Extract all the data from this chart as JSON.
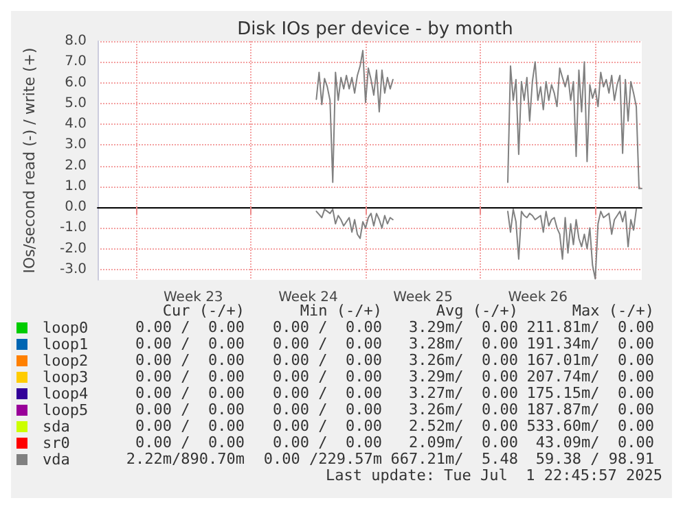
{
  "chart_data": {
    "type": "line",
    "title": "Disk IOs per device - by month",
    "ylabel": "IOs/second read (-) / write (+)",
    "categories": [
      null,
      null,
      null,
      null,
      null,
      null,
      null,
      null,
      null,
      null,
      null,
      null,
      null,
      null,
      null,
      null,
      null,
      null,
      null,
      null,
      null,
      null,
      null,
      null,
      null,
      null,
      null,
      null,
      null,
      null,
      null,
      null,
      null,
      null,
      null,
      "Week 23",
      null,
      null,
      null,
      null,
      null,
      null,
      null,
      null,
      null,
      null,
      null,
      null,
      null,
      null,
      null,
      null,
      null,
      null,
      null,
      null,
      null,
      null,
      null,
      null,
      null,
      null,
      null,
      null,
      null,
      null,
      null,
      null,
      null,
      null,
      null,
      null,
      null,
      null,
      null,
      null,
      null,
      "Week 24",
      null,
      null,
      null,
      null,
      null,
      null,
      null,
      null,
      null,
      null,
      null,
      null,
      null,
      null,
      null,
      null,
      null,
      null,
      null,
      null,
      null,
      null,
      null,
      null,
      null,
      null,
      null,
      null,
      null,
      null,
      null,
      null,
      null,
      null,
      null,
      null,
      null,
      null,
      null,
      null,
      null,
      "Week 25",
      null,
      null,
      null,
      null,
      null,
      null,
      null,
      null,
      null,
      null,
      null,
      null,
      null,
      null,
      null,
      null,
      null,
      null,
      null,
      null,
      null,
      null,
      null,
      null,
      null,
      null,
      null,
      null,
      null,
      null,
      null,
      null,
      null,
      null,
      null,
      null,
      null,
      null,
      null,
      null,
      null,
      "Week 26",
      null,
      null,
      null,
      null,
      null,
      null,
      null,
      null,
      null,
      null,
      null,
      null,
      null,
      null,
      null,
      null,
      null,
      null,
      null,
      null,
      null,
      null,
      null,
      null,
      null,
      null,
      null,
      null,
      null,
      null,
      null,
      null,
      null,
      null,
      null,
      null,
      null,
      null
    ],
    "ylim": [
      -3.5,
      8.0
    ],
    "yticks": [
      {
        "value": -3,
        "label": "-3.0"
      },
      {
        "value": -2,
        "label": "-2.0"
      },
      {
        "value": -1,
        "label": "-1.0"
      },
      {
        "value": 0,
        "label": "0.0"
      },
      {
        "value": 1,
        "label": "1.0"
      },
      {
        "value": 2,
        "label": "2.0"
      },
      {
        "value": 3,
        "label": "3.0"
      },
      {
        "value": 4,
        "label": "4.0"
      },
      {
        "value": 5,
        "label": "5.0"
      },
      {
        "value": 6,
        "label": "6.0"
      },
      {
        "value": 7,
        "label": "7.0"
      },
      {
        "value": 8,
        "label": "8.0"
      }
    ],
    "grid": true,
    "legend": "bottom left",
    "marker": "none",
    "line_style": "solid",
    "series": [
      {
        "name": "loop0",
        "color": "#00cc00",
        "values": [
          null,
          null,
          null,
          null,
          null,
          null,
          null,
          null,
          null,
          null,
          null,
          null,
          null,
          null,
          null,
          null,
          null,
          null,
          null,
          null,
          null,
          null,
          null,
          null,
          null,
          null,
          null,
          null,
          null,
          null,
          null,
          null,
          null,
          null,
          null,
          null,
          null,
          null,
          null,
          null,
          null,
          null,
          null,
          null,
          null,
          null,
          null,
          null,
          null,
          null,
          null,
          null,
          null,
          null,
          null,
          null,
          null,
          null,
          null,
          null,
          null,
          null,
          null,
          null,
          null,
          null,
          null,
          null,
          null,
          null,
          null,
          null,
          null,
          null,
          null,
          null,
          null,
          null,
          null,
          null,
          null,
          null,
          null,
          null,
          null,
          null,
          null,
          null,
          null,
          null,
          null,
          null,
          null,
          null,
          null,
          null,
          null,
          null,
          null,
          null,
          null,
          null,
          null,
          null,
          null,
          null,
          null,
          null,
          null,
          null,
          null,
          null,
          null,
          null,
          null,
          null,
          null,
          null,
          null,
          null,
          null,
          null,
          null,
          null,
          null,
          null,
          null,
          null,
          null,
          null,
          null,
          null,
          null,
          null,
          null,
          null,
          null,
          null,
          null,
          null,
          null,
          null,
          null,
          null,
          null,
          null,
          null,
          null,
          null,
          null,
          null,
          null,
          null,
          null,
          null,
          null,
          null,
          null,
          null,
          null,
          null,
          null,
          null,
          null,
          null,
          null,
          null,
          null,
          null,
          null,
          null,
          null,
          null,
          null,
          null,
          null,
          null,
          null,
          null,
          null,
          null,
          null,
          null,
          null,
          null,
          null,
          null,
          null,
          null,
          null,
          null,
          null,
          null,
          null,
          null,
          null,
          null,
          null,
          null,
          null
        ]
      },
      {
        "name": "loop1",
        "color": "#0066b3",
        "values": [
          null,
          null,
          null,
          null,
          null,
          null,
          null,
          null,
          null,
          null,
          null,
          null,
          null,
          null,
          null,
          null,
          null,
          null,
          null,
          null,
          null,
          null,
          null,
          null,
          null,
          null,
          null,
          null,
          null,
          null,
          null,
          null,
          null,
          null,
          null,
          null,
          null,
          null,
          null,
          null,
          null,
          null,
          null,
          null,
          null,
          null,
          null,
          null,
          null,
          null,
          null,
          null,
          null,
          null,
          null,
          null,
          null,
          null,
          null,
          null,
          null,
          null,
          null,
          null,
          null,
          null,
          null,
          null,
          null,
          null,
          null,
          null,
          null,
          null,
          null,
          null,
          null,
          null,
          null,
          null,
          null,
          null,
          null,
          null,
          null,
          null,
          null,
          null,
          null,
          null,
          null,
          null,
          null,
          null,
          null,
          null,
          null,
          null,
          null,
          null,
          null,
          null,
          null,
          null,
          null,
          null,
          null,
          null,
          null,
          null,
          null,
          null,
          null,
          null,
          null,
          null,
          null,
          null,
          null,
          null,
          null,
          null,
          null,
          null,
          null,
          null,
          null,
          null,
          null,
          null,
          null,
          null,
          null,
          null,
          null,
          null,
          null,
          null,
          null,
          null,
          null,
          null,
          null,
          null,
          null,
          null,
          null,
          null,
          null,
          null,
          null,
          null,
          null,
          null,
          null,
          null,
          null,
          null,
          null,
          null,
          null,
          null,
          null,
          null,
          null,
          null,
          null,
          null,
          null,
          null,
          null,
          null,
          null,
          null,
          null,
          null,
          null,
          null,
          null,
          null,
          null,
          null,
          null,
          null,
          null,
          null,
          null,
          null,
          null,
          null,
          null,
          null,
          null,
          null,
          null,
          null,
          null,
          null,
          null,
          null
        ]
      },
      {
        "name": "loop2",
        "color": "#ff8000",
        "values": [
          null,
          null,
          null,
          null,
          null,
          null,
          null,
          null,
          null,
          null,
          null,
          null,
          null,
          null,
          null,
          null,
          null,
          null,
          null,
          null,
          null,
          null,
          null,
          null,
          null,
          null,
          null,
          null,
          null,
          null,
          null,
          null,
          null,
          null,
          null,
          null,
          null,
          null,
          null,
          null,
          null,
          null,
          null,
          null,
          null,
          null,
          null,
          null,
          null,
          null,
          null,
          null,
          null,
          null,
          null,
          null,
          null,
          null,
          null,
          null,
          null,
          null,
          null,
          null,
          null,
          null,
          null,
          null,
          null,
          null,
          null,
          null,
          null,
          null,
          null,
          null,
          null,
          null,
          null,
          null,
          null,
          null,
          null,
          null,
          null,
          null,
          null,
          null,
          null,
          null,
          null,
          null,
          null,
          null,
          null,
          null,
          null,
          null,
          null,
          null,
          null,
          null,
          null,
          null,
          null,
          null,
          null,
          null,
          null,
          null,
          null,
          null,
          null,
          null,
          null,
          null,
          null,
          null,
          null,
          null,
          null,
          null,
          null,
          null,
          null,
          null,
          null,
          null,
          null,
          null,
          null,
          null,
          null,
          null,
          null,
          null,
          null,
          null,
          null,
          null,
          null,
          null,
          null,
          null,
          null,
          null,
          null,
          null,
          null,
          null,
          null,
          null,
          null,
          null,
          null,
          null,
          null,
          null,
          null,
          null,
          null,
          null,
          null,
          null,
          null,
          null,
          null,
          null,
          null,
          null,
          null,
          null,
          null,
          null,
          null,
          null,
          null,
          null,
          null,
          null,
          null,
          null,
          null,
          null,
          null,
          null,
          null,
          null,
          null,
          null,
          null,
          null,
          null,
          null,
          null,
          null,
          null,
          null,
          null,
          null
        ]
      },
      {
        "name": "loop3",
        "color": "#ffcc00",
        "values": [
          null,
          null,
          null,
          null,
          null,
          null,
          null,
          null,
          null,
          null,
          null,
          null,
          null,
          null,
          null,
          null,
          null,
          null,
          null,
          null,
          null,
          null,
          null,
          null,
          null,
          null,
          null,
          null,
          null,
          null,
          null,
          null,
          null,
          null,
          null,
          null,
          null,
          null,
          null,
          null,
          null,
          null,
          null,
          null,
          null,
          null,
          null,
          null,
          null,
          null,
          null,
          null,
          null,
          null,
          null,
          null,
          null,
          null,
          null,
          null,
          null,
          null,
          null,
          null,
          null,
          null,
          null,
          null,
          null,
          null,
          null,
          null,
          null,
          null,
          null,
          null,
          null,
          null,
          null,
          null,
          null,
          null,
          null,
          null,
          null,
          null,
          null,
          null,
          null,
          null,
          null,
          null,
          null,
          null,
          null,
          null,
          null,
          null,
          null,
          null,
          null,
          null,
          null,
          null,
          null,
          null,
          null,
          null,
          null,
          null,
          null,
          null,
          null,
          null,
          null,
          null,
          null,
          null,
          null,
          null,
          null,
          null,
          null,
          null,
          null,
          null,
          null,
          null,
          null,
          null,
          null,
          null,
          null,
          null,
          null,
          null,
          null,
          null,
          null,
          null,
          null,
          null,
          null,
          null,
          null,
          null,
          null,
          null,
          null,
          null,
          null,
          null,
          null,
          null,
          null,
          null,
          null,
          null,
          null,
          null,
          null,
          null,
          null,
          null,
          null,
          null,
          null,
          null,
          null,
          null,
          null,
          null,
          null,
          null,
          null,
          null,
          null,
          null,
          null,
          null,
          null,
          null,
          null,
          null,
          null,
          null,
          null,
          null,
          null,
          null,
          null,
          null,
          null,
          null,
          null,
          null,
          null,
          null,
          null,
          null
        ]
      },
      {
        "name": "loop4",
        "color": "#330099",
        "values": [
          null,
          null,
          null,
          null,
          null,
          null,
          null,
          null,
          null,
          null,
          null,
          null,
          null,
          null,
          null,
          null,
          null,
          null,
          null,
          null,
          null,
          null,
          null,
          null,
          null,
          null,
          null,
          null,
          null,
          null,
          null,
          null,
          null,
          null,
          null,
          null,
          null,
          null,
          null,
          null,
          null,
          null,
          null,
          null,
          null,
          null,
          null,
          null,
          null,
          null,
          null,
          null,
          null,
          null,
          null,
          null,
          null,
          null,
          null,
          null,
          null,
          null,
          null,
          null,
          null,
          null,
          null,
          null,
          null,
          null,
          null,
          null,
          null,
          null,
          null,
          null,
          null,
          null,
          null,
          null,
          null,
          null,
          null,
          null,
          null,
          null,
          null,
          null,
          null,
          null,
          null,
          null,
          null,
          null,
          null,
          null,
          null,
          null,
          null,
          null,
          null,
          null,
          null,
          null,
          null,
          null,
          null,
          null,
          null,
          null,
          null,
          null,
          null,
          null,
          null,
          null,
          null,
          null,
          null,
          null,
          null,
          null,
          null,
          null,
          null,
          null,
          null,
          null,
          null,
          null,
          null,
          null,
          null,
          null,
          null,
          null,
          null,
          null,
          null,
          null,
          null,
          null,
          null,
          null,
          null,
          null,
          null,
          null,
          null,
          null,
          null,
          null,
          null,
          null,
          null,
          null,
          null,
          null,
          null,
          null,
          null,
          null,
          null,
          null,
          null,
          null,
          null,
          null,
          null,
          null,
          null,
          null,
          null,
          null,
          null,
          null,
          null,
          null,
          null,
          null,
          null,
          null,
          null,
          null,
          null,
          null,
          null,
          null,
          null,
          null,
          null,
          null,
          null,
          null,
          null,
          null,
          null,
          null,
          null,
          null
        ]
      },
      {
        "name": "loop5",
        "color": "#990099",
        "values": [
          null,
          null,
          null,
          null,
          null,
          null,
          null,
          null,
          null,
          null,
          null,
          null,
          null,
          null,
          null,
          null,
          null,
          null,
          null,
          null,
          null,
          null,
          null,
          null,
          null,
          null,
          null,
          null,
          null,
          null,
          null,
          null,
          null,
          null,
          null,
          null,
          null,
          null,
          null,
          null,
          null,
          null,
          null,
          null,
          null,
          null,
          null,
          null,
          null,
          null,
          null,
          null,
          null,
          null,
          null,
          null,
          null,
          null,
          null,
          null,
          null,
          null,
          null,
          null,
          null,
          null,
          null,
          null,
          null,
          null,
          null,
          null,
          null,
          null,
          null,
          null,
          null,
          null,
          null,
          null,
          null,
          null,
          null,
          null,
          null,
          null,
          null,
          null,
          null,
          null,
          null,
          null,
          null,
          null,
          null,
          null,
          null,
          null,
          null,
          null,
          null,
          null,
          null,
          null,
          null,
          null,
          null,
          null,
          null,
          null,
          null,
          null,
          null,
          null,
          null,
          null,
          null,
          null,
          null,
          null,
          null,
          null,
          null,
          null,
          null,
          null,
          null,
          null,
          null,
          null,
          null,
          null,
          null,
          null,
          null,
          null,
          null,
          null,
          null,
          null,
          null,
          null,
          null,
          null,
          null,
          null,
          null,
          null,
          null,
          null,
          null,
          null,
          null,
          null,
          null,
          null,
          null,
          null,
          null,
          null,
          null,
          null,
          null,
          null,
          null,
          null,
          null,
          null,
          null,
          null,
          null,
          null,
          null,
          null,
          null,
          null,
          null,
          null,
          null,
          null,
          null,
          null,
          null,
          null,
          null,
          null,
          null,
          null,
          null,
          null,
          null,
          null,
          null,
          null,
          null,
          null,
          null,
          null,
          null,
          null
        ]
      },
      {
        "name": "sda",
        "color": "#ccff00",
        "values": [
          null,
          null,
          null,
          null,
          null,
          null,
          null,
          null,
          null,
          null,
          null,
          null,
          null,
          null,
          null,
          null,
          null,
          null,
          null,
          null,
          null,
          null,
          null,
          null,
          null,
          null,
          null,
          null,
          null,
          null,
          null,
          null,
          null,
          null,
          null,
          null,
          null,
          null,
          null,
          null,
          null,
          null,
          null,
          null,
          null,
          null,
          null,
          null,
          null,
          null,
          null,
          null,
          null,
          null,
          null,
          null,
          null,
          null,
          null,
          null,
          null,
          null,
          null,
          null,
          null,
          null,
          null,
          null,
          null,
          null,
          null,
          null,
          null,
          null,
          null,
          null,
          null,
          null,
          null,
          null,
          null,
          null,
          null,
          null,
          null,
          null,
          null,
          null,
          null,
          null,
          null,
          null,
          null,
          null,
          null,
          null,
          null,
          null,
          null,
          null,
          null,
          null,
          null,
          null,
          null,
          null,
          null,
          null,
          null,
          null,
          null,
          null,
          null,
          null,
          null,
          null,
          null,
          null,
          null,
          null,
          null,
          null,
          null,
          null,
          null,
          null,
          null,
          null,
          null,
          null,
          null,
          null,
          null,
          null,
          null,
          null,
          null,
          null,
          null,
          null,
          null,
          null,
          null,
          null,
          null,
          null,
          null,
          null,
          null,
          null,
          null,
          null,
          null,
          null,
          null,
          null,
          null,
          null,
          null,
          null,
          null,
          null,
          null,
          null,
          null,
          null,
          null,
          null,
          null,
          null,
          null,
          null,
          null,
          null,
          null,
          null,
          null,
          null,
          null,
          null,
          null,
          null,
          null,
          null,
          null,
          null,
          null,
          null,
          null,
          null,
          null,
          null,
          null,
          null,
          null,
          null,
          null,
          null,
          null,
          null
        ]
      },
      {
        "name": "sr0",
        "color": "#ff0000",
        "values": [
          null,
          null,
          null,
          null,
          null,
          null,
          null,
          null,
          null,
          null,
          null,
          null,
          null,
          null,
          null,
          null,
          null,
          null,
          null,
          null,
          null,
          null,
          null,
          null,
          null,
          null,
          null,
          null,
          null,
          null,
          null,
          null,
          null,
          null,
          null,
          null,
          null,
          null,
          null,
          null,
          null,
          null,
          null,
          null,
          null,
          null,
          null,
          null,
          null,
          null,
          null,
          null,
          null,
          null,
          null,
          null,
          null,
          null,
          null,
          null,
          null,
          null,
          null,
          null,
          null,
          null,
          null,
          null,
          null,
          null,
          null,
          null,
          null,
          null,
          null,
          null,
          null,
          null,
          null,
          null,
          null,
          null,
          null,
          null,
          null,
          null,
          null,
          null,
          null,
          null,
          null,
          null,
          null,
          null,
          null,
          null,
          null,
          null,
          null,
          null,
          null,
          null,
          null,
          null,
          null,
          null,
          null,
          null,
          null,
          null,
          null,
          null,
          null,
          null,
          null,
          null,
          null,
          null,
          null,
          null,
          null,
          null,
          null,
          null,
          null,
          null,
          null,
          null,
          null,
          null,
          null,
          null,
          null,
          null,
          null,
          null,
          null,
          null,
          null,
          null,
          null,
          null,
          null,
          null,
          null,
          null,
          null,
          null,
          null,
          null,
          null,
          null,
          null,
          null,
          null,
          null,
          null,
          null,
          null,
          null,
          null,
          null,
          null,
          null,
          null,
          null,
          null,
          null,
          null,
          null,
          null,
          null,
          null,
          null,
          null,
          null,
          null,
          null,
          null,
          null,
          null,
          null,
          null,
          null,
          null,
          null,
          null,
          null,
          null,
          null,
          null,
          null,
          null,
          null,
          null,
          null,
          null,
          null,
          null,
          null
        ]
      },
      {
        "name": "vda",
        "color": "#808080",
        "values": [
          null,
          null,
          null,
          null,
          null,
          null,
          null,
          null,
          null,
          null,
          null,
          null,
          null,
          null,
          null,
          null,
          null,
          null,
          null,
          null,
          null,
          null,
          null,
          null,
          null,
          null,
          null,
          null,
          null,
          null,
          null,
          null,
          null,
          null,
          null,
          null,
          null,
          null,
          null,
          null,
          null,
          null,
          null,
          null,
          null,
          null,
          null,
          null,
          null,
          null,
          null,
          null,
          null,
          null,
          null,
          null,
          null,
          null,
          null,
          null,
          null,
          null,
          null,
          null,
          null,
          null,
          null,
          null,
          null,
          null,
          null,
          null,
          null,
          null,
          null,
          null,
          null,
          null,
          null,
          null,
          5.2,
          6.5,
          4.95,
          6.2,
          5.8,
          5.15,
          1.2,
          6.5,
          5.15,
          6.25,
          5.7,
          6.35,
          5.7,
          6.25,
          5.5,
          6.35,
          6.8,
          7.55,
          5.05,
          6.7,
          6.15,
          5.4,
          6.6,
          4.6,
          6.6,
          5.5,
          6.25,
          5.7,
          6.15,
          null,
          null,
          null,
          null,
          null,
          null,
          null,
          null,
          null,
          null,
          null,
          null,
          null,
          null,
          null,
          null,
          null,
          null,
          null,
          null,
          null,
          null,
          null,
          null,
          null,
          null,
          null,
          null,
          null,
          null,
          null,
          null,
          null,
          null,
          null,
          null,
          null,
          null,
          null,
          null,
          null,
          1.2,
          6.8,
          5.15,
          6.15,
          2.55,
          6.05,
          5.15,
          6.25,
          4.15,
          6.05,
          7.0,
          5.15,
          5.8,
          4.7,
          6.05,
          5.15,
          5.9,
          5.5,
          4.85,
          6.7,
          6.25,
          5.8,
          6.35,
          5.15,
          6.05,
          2.45,
          6.6,
          4.6,
          7.0,
          2.2,
          5.9,
          5.25,
          5.7,
          4.85,
          6.5,
          5.8,
          6.15,
          5.5,
          6.35,
          5.15,
          5.9,
          6.35,
          2.6,
          6.15,
          4.15,
          6.05,
          5.5,
          4.85,
          0.9,
          0.9
        ]
      },
      {
        "color": "#808080",
        "values": [
          null,
          null,
          null,
          null,
          null,
          null,
          null,
          null,
          null,
          null,
          null,
          null,
          null,
          null,
          null,
          null,
          null,
          null,
          null,
          null,
          null,
          null,
          null,
          null,
          null,
          null,
          null,
          null,
          null,
          null,
          null,
          null,
          null,
          null,
          null,
          null,
          null,
          null,
          null,
          null,
          null,
          null,
          null,
          null,
          null,
          null,
          null,
          null,
          null,
          null,
          null,
          null,
          null,
          null,
          null,
          null,
          null,
          null,
          null,
          null,
          null,
          null,
          null,
          null,
          null,
          null,
          null,
          null,
          null,
          null,
          null,
          null,
          null,
          null,
          null,
          null,
          null,
          null,
          null,
          null,
          -0.2,
          -0.35,
          -0.5,
          -0.1,
          -0.2,
          -0.3,
          -0.1,
          -0.8,
          -0.4,
          -0.6,
          -0.9,
          -0.7,
          -0.5,
          -1.2,
          -0.6,
          -1.3,
          -1.5,
          -0.7,
          -1.0,
          -0.5,
          -0.3,
          -0.9,
          -0.3,
          -0.6,
          -1.0,
          -0.4,
          -0.8,
          -0.5,
          -0.6,
          null,
          null,
          null,
          null,
          null,
          null,
          null,
          null,
          null,
          null,
          null,
          null,
          null,
          null,
          null,
          null,
          null,
          null,
          null,
          null,
          null,
          null,
          null,
          null,
          null,
          null,
          null,
          null,
          null,
          null,
          null,
          null,
          null,
          null,
          null,
          null,
          null,
          null,
          null,
          null,
          null,
          -0.2,
          -1.2,
          -0.1,
          -0.7,
          -2.5,
          -0.2,
          -0.4,
          -0.5,
          -0.3,
          -0.4,
          -0.6,
          -0.5,
          -0.4,
          -1.2,
          -0.2,
          -0.9,
          -0.6,
          -0.5,
          -1.0,
          -1.3,
          -2.5,
          -0.5,
          -2.2,
          -0.8,
          -1.8,
          -0.6,
          -1.5,
          -1.9,
          -1.3,
          -2.0,
          -1.0,
          -2.8,
          -3.45,
          -0.8,
          -0.2,
          -0.5,
          -0.4,
          -0.3,
          -1.3,
          -0.6,
          -0.4,
          -0.2,
          -0.7,
          -0.2,
          -1.9,
          -0.6,
          -1.1,
          -0.1,
          null,
          null
        ]
      }
    ],
    "annotations": [
      "Cur (-/+)",
      "Min (-/+)",
      "Avg (-/+)",
      "Max (-/+)",
      "0.00 /  0.00",
      "0.00 /  0.00",
      "3.29m/  0.00",
      "211.81m/  0.00",
      "0.00 /  0.00",
      "0.00 /  0.00",
      "3.28m/  0.00",
      "191.34m/  0.00",
      "0.00 /  0.00",
      "0.00 /  0.00",
      "3.26m/  0.00",
      "167.01m/  0.00",
      "0.00 /  0.00",
      "0.00 /  0.00",
      "3.29m/  0.00",
      "207.74m/  0.00",
      "0.00 /  0.00",
      "0.00 /  0.00",
      "3.27m/  0.00",
      "175.15m/  0.00",
      "0.00 /  0.00",
      "0.00 /  0.00",
      "3.26m/  0.00",
      "187.87m/  0.00",
      "0.00 /  0.00",
      "0.00 /  0.00",
      "2.52m/  0.00",
      "533.60m/  0.00",
      "0.00 /  0.00",
      "0.00 /  0.00",
      "2.09m/  0.00",
      "43.09m/  0.00",
      "2.22m/890.70m",
      "0.00 /229.57m",
      "667.21m/  5.48",
      "59.38 / 98.91",
      "Last update: Tue Jul  1 22:45:57 2025"
    ]
  }
}
